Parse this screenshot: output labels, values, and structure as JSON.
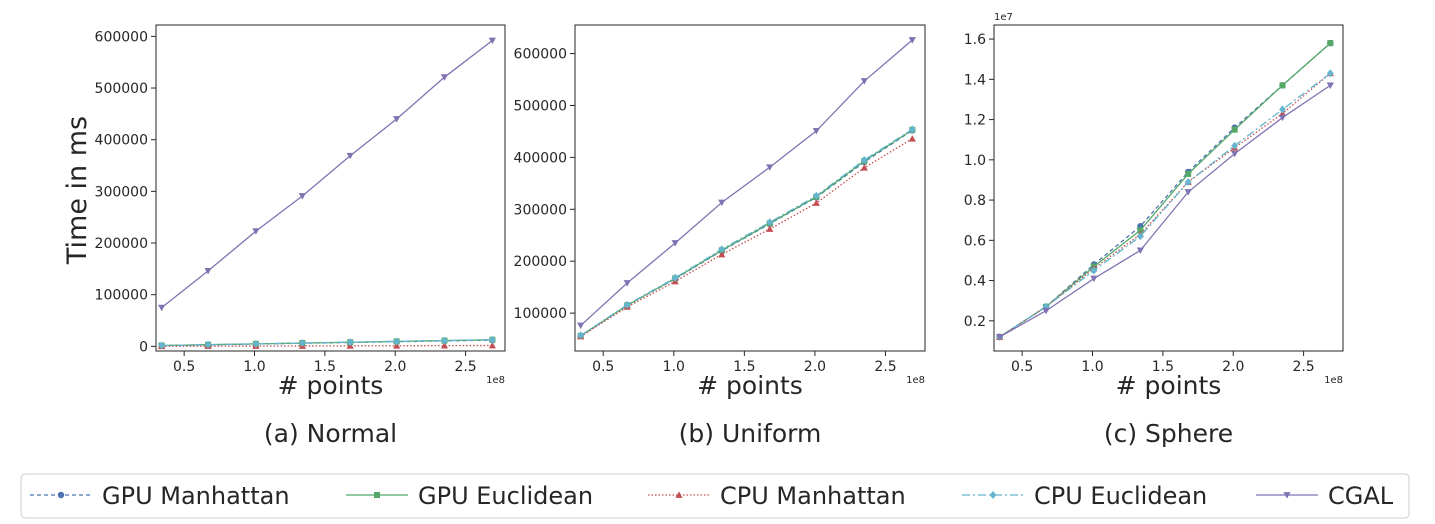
{
  "figure": {
    "xlabel": "# points",
    "x_offset_label": "1e8",
    "ylabel": "Time in ms"
  },
  "series_styles": [
    {
      "name": "GPU Manhattan",
      "color": "#4c72b0",
      "dash": "4,3",
      "marker": "circle"
    },
    {
      "name": "GPU Euclidean",
      "color": "#55a868",
      "dash": "",
      "marker": "square"
    },
    {
      "name": "CPU Manhattan",
      "color": "#c44e52",
      "dash": "1.5,2",
      "marker": "triangle-up"
    },
    {
      "name": "CPU Euclidean",
      "color": "#64b5cd",
      "dash": "8,3,2,3",
      "marker": "diamond"
    },
    {
      "name": "CGAL",
      "color": "#8172b2",
      "dash": "",
      "marker": "triangle-down"
    }
  ],
  "legend": {
    "placement": "bottom-center",
    "items": [
      "GPU Manhattan",
      "GPU Euclidean",
      "CPU Manhattan",
      "CPU Euclidean",
      "CGAL"
    ]
  },
  "chart_data": [
    {
      "type": "line",
      "caption": "(a) Normal",
      "xlabel": "# points",
      "ylabel": "Time in ms",
      "x_unit_label": "1e8",
      "y_unit_label": "",
      "xlim": [
        0.3,
        2.78
      ],
      "ylim": [
        -9000,
        622000
      ],
      "xticks": [
        0.5,
        1.0,
        1.5,
        2.0,
        2.5
      ],
      "xtick_labels": [
        "0.5",
        "1.0",
        "1.5",
        "2.0",
        "2.5"
      ],
      "yticks": [
        0,
        100000,
        200000,
        300000,
        400000,
        500000,
        600000
      ],
      "ytick_labels": [
        "0",
        "100000",
        "200000",
        "300000",
        "400000",
        "500000",
        "600000"
      ],
      "x": [
        0.34,
        0.67,
        1.01,
        1.34,
        1.68,
        2.01,
        2.35,
        2.69
      ],
      "series": [
        {
          "name": "GPU Manhattan",
          "values": [
            1500,
            3000,
            4500,
            6000,
            7500,
            9000,
            10500,
            12000
          ]
        },
        {
          "name": "GPU Euclidean",
          "values": [
            1600,
            3200,
            4800,
            6400,
            8000,
            9600,
            11200,
            12800
          ]
        },
        {
          "name": "CPU Manhattan",
          "values": [
            200,
            400,
            600,
            800,
            1000,
            1200,
            1400,
            1600
          ]
        },
        {
          "name": "CPU Euclidean",
          "values": [
            1600,
            3200,
            4800,
            6400,
            8000,
            9600,
            11200,
            12800
          ]
        },
        {
          "name": "CGAL",
          "values": [
            75000,
            146000,
            223000,
            291000,
            369000,
            440000,
            521000,
            592000
          ]
        }
      ]
    },
    {
      "type": "line",
      "caption": "(b) Uniform",
      "xlabel": "# points",
      "ylabel": "",
      "x_unit_label": "1e8",
      "y_unit_label": "",
      "xlim": [
        0.3,
        2.78
      ],
      "ylim": [
        27000,
        655000
      ],
      "xticks": [
        0.5,
        1.0,
        1.5,
        2.0,
        2.5
      ],
      "xtick_labels": [
        "0.5",
        "1.0",
        "1.5",
        "2.0",
        "2.5"
      ],
      "yticks": [
        100000,
        200000,
        300000,
        400000,
        500000,
        600000
      ],
      "ytick_labels": [
        "100000",
        "200000",
        "300000",
        "400000",
        "500000",
        "600000"
      ],
      "x": [
        0.34,
        0.67,
        1.01,
        1.34,
        1.68,
        2.01,
        2.35,
        2.69
      ],
      "series": [
        {
          "name": "GPU Manhattan",
          "values": [
            56000,
            115000,
            166000,
            220000,
            272000,
            323000,
            391000,
            452000
          ]
        },
        {
          "name": "GPU Euclidean",
          "values": [
            56000,
            115000,
            167000,
            221000,
            273000,
            324000,
            393000,
            453000
          ]
        },
        {
          "name": "CPU Manhattan",
          "values": [
            55000,
            112000,
            161000,
            213000,
            262000,
            312000,
            380000,
            436000
          ]
        },
        {
          "name": "CPU Euclidean",
          "values": [
            57000,
            116000,
            168000,
            223000,
            275000,
            326000,
            395000,
            454000
          ]
        },
        {
          "name": "CGAL",
          "values": [
            76000,
            158000,
            235000,
            313000,
            381000,
            451000,
            547000,
            626000
          ]
        }
      ]
    },
    {
      "type": "line",
      "caption": "(c) Sphere",
      "xlabel": "# points",
      "ylabel": "",
      "x_unit_label": "1e8",
      "y_unit_label": "1e7",
      "xlim": [
        0.3,
        2.78
      ],
      "ylim": [
        0.05,
        1.67
      ],
      "xticks": [
        0.5,
        1.0,
        1.5,
        2.0,
        2.5
      ],
      "xtick_labels": [
        "0.5",
        "1.0",
        "1.5",
        "2.0",
        "2.5"
      ],
      "yticks": [
        0.2,
        0.4,
        0.6,
        0.8,
        1.0,
        1.2,
        1.4,
        1.6
      ],
      "ytick_labels": [
        "0.2",
        "0.4",
        "0.6",
        "0.8",
        "1.0",
        "1.2",
        "1.4",
        "1.6"
      ],
      "x": [
        0.34,
        0.67,
        1.01,
        1.34,
        1.68,
        2.01,
        2.35,
        2.69
      ],
      "series": [
        {
          "name": "GPU Manhattan",
          "values": [
            0.12,
            0.27,
            0.48,
            0.67,
            0.94,
            1.16,
            1.37,
            1.58
          ]
        },
        {
          "name": "GPU Euclidean",
          "values": [
            0.12,
            0.27,
            0.47,
            0.65,
            0.93,
            1.15,
            1.37,
            1.58
          ]
        },
        {
          "name": "CPU Manhattan",
          "values": [
            0.12,
            0.27,
            0.46,
            0.63,
            0.89,
            1.06,
            1.23,
            1.43
          ]
        },
        {
          "name": "CPU Euclidean",
          "values": [
            0.12,
            0.27,
            0.45,
            0.62,
            0.89,
            1.07,
            1.25,
            1.43
          ]
        },
        {
          "name": "CGAL",
          "values": [
            0.12,
            0.25,
            0.41,
            0.55,
            0.84,
            1.03,
            1.21,
            1.37
          ]
        }
      ]
    }
  ]
}
